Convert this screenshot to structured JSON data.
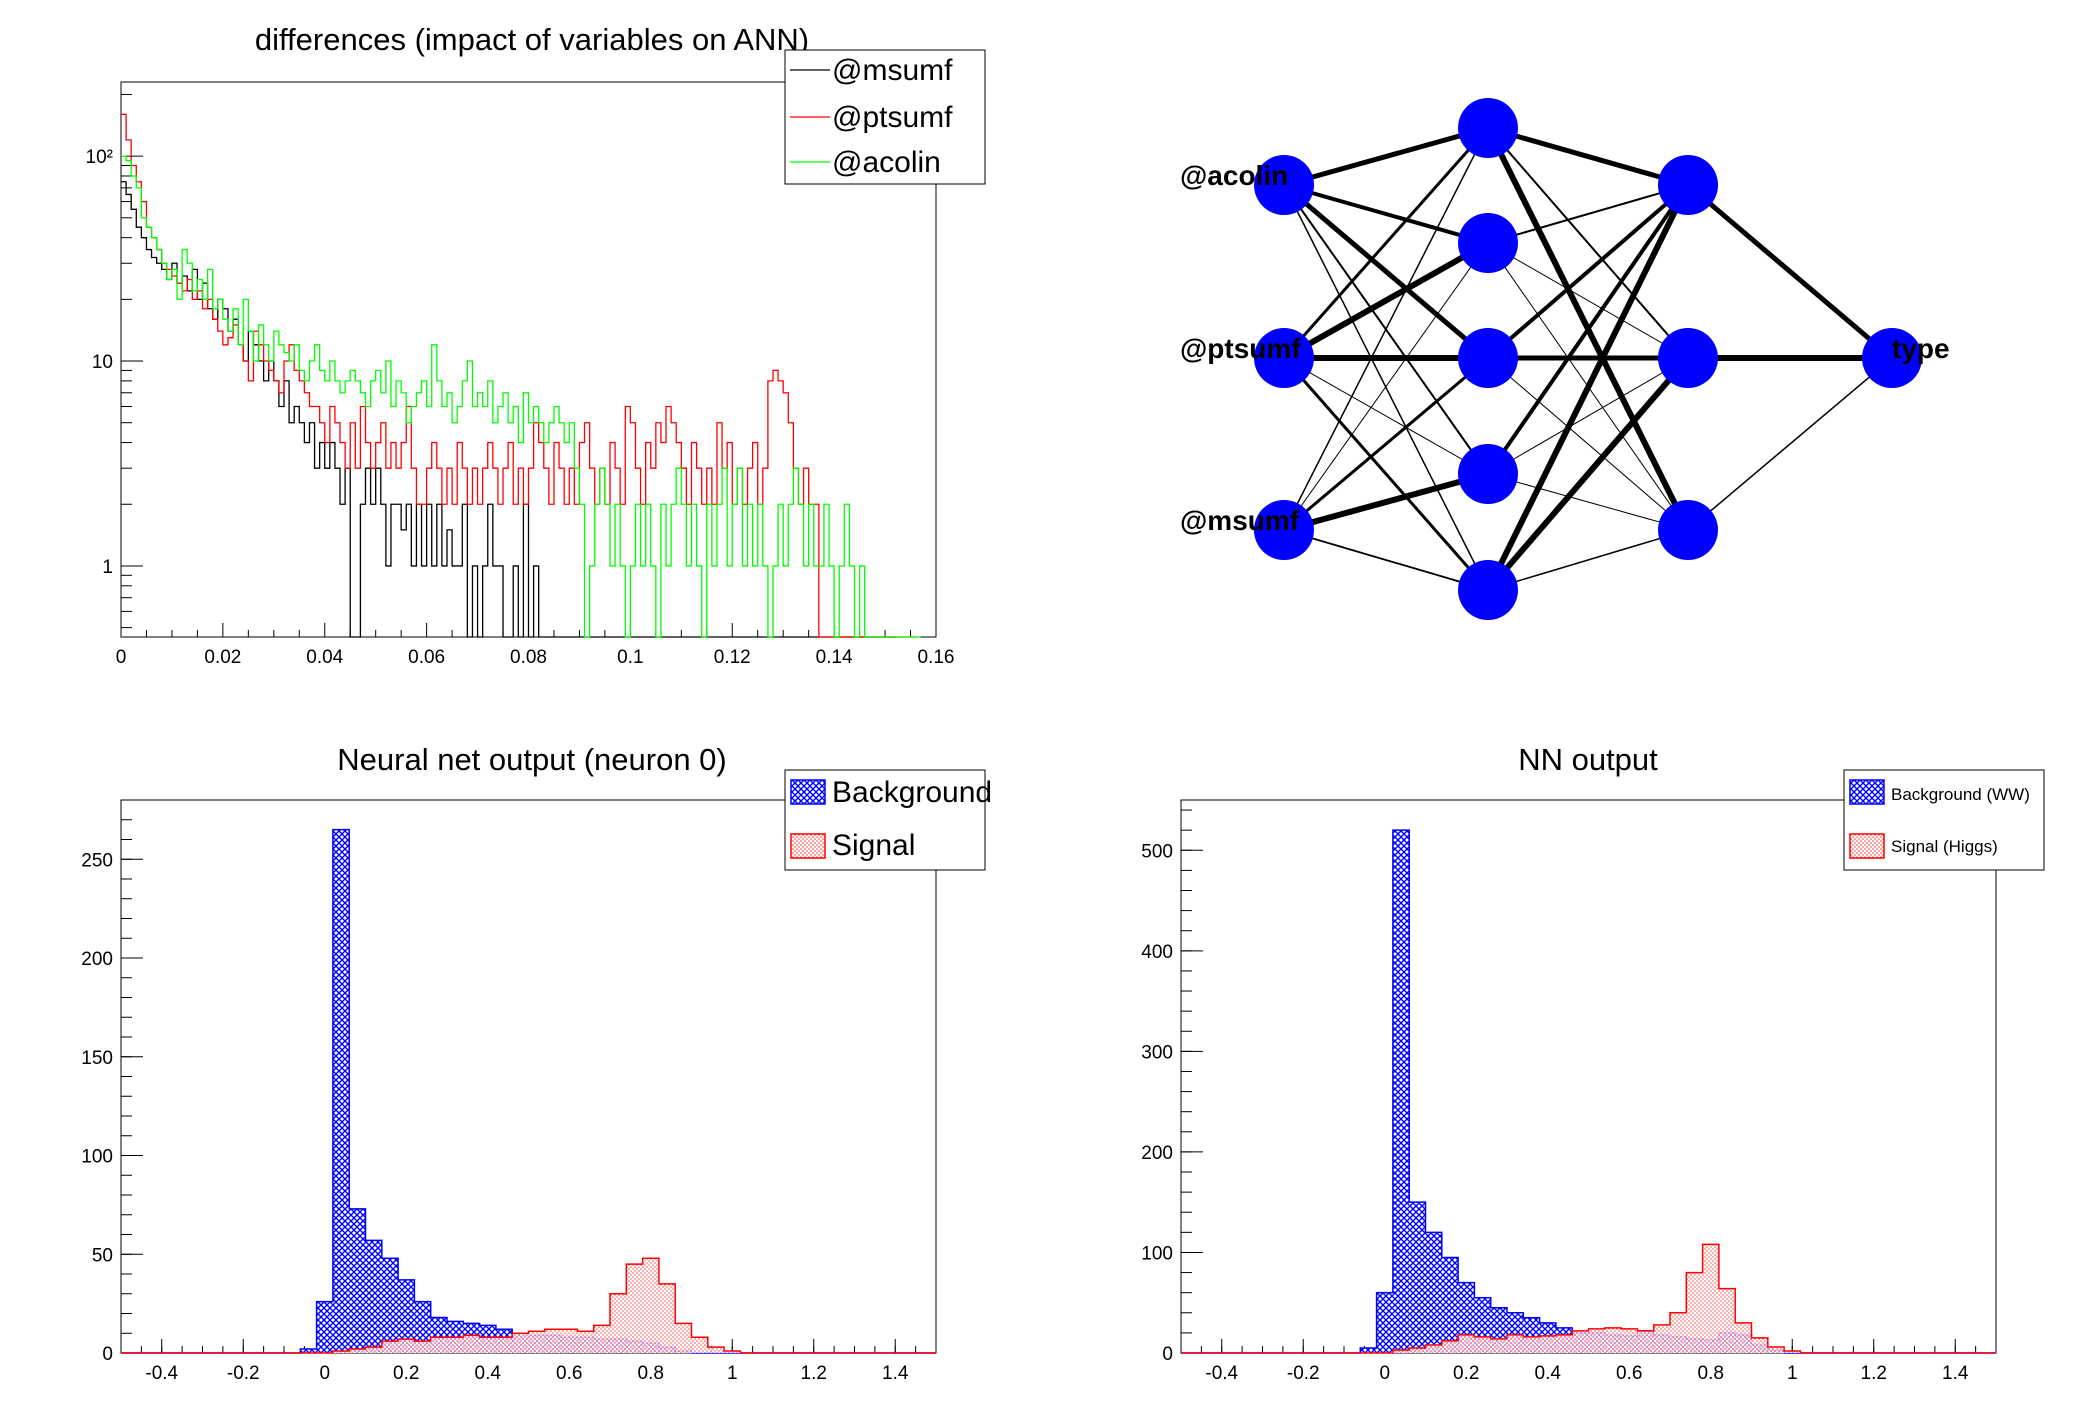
{
  "chart_data": [
    {
      "id": "diff",
      "type": "line",
      "title": "differences (impact of variables on ANN)",
      "yscale": "log",
      "xlim": [
        0,
        0.16
      ],
      "ylim": [
        0.45,
        230
      ],
      "xticks": [
        "0",
        "0.02",
        "0.04",
        "0.06",
        "0.08",
        "0.1",
        "0.12",
        "0.14",
        "0.16"
      ],
      "yticks": [
        {
          "v": 1,
          "label": "1"
        },
        {
          "v": 10,
          "label": "10"
        },
        {
          "v": 100,
          "label": "10²"
        }
      ],
      "legend_position": "top-right",
      "series": [
        {
          "name": "@msumf",
          "color": "#000000",
          "bin_width": 0.001,
          "values": [
            75,
            65,
            55,
            45,
            40,
            35,
            32,
            30,
            28,
            25,
            30,
            24,
            26,
            22,
            28,
            20,
            24,
            18,
            16,
            20,
            18,
            14,
            16,
            12,
            10,
            14,
            12,
            10,
            8,
            10,
            8,
            6,
            8,
            5,
            6,
            5,
            4,
            5,
            3,
            4,
            3,
            4,
            3,
            2,
            3,
            0.3,
            0.3,
            2,
            3,
            2,
            3,
            2,
            1,
            2,
            2,
            1.5,
            2,
            1,
            2,
            1,
            2,
            1,
            2,
            1,
            1.5,
            1,
            1,
            2,
            0.3,
            1,
            0.3,
            1,
            2,
            1,
            1,
            0.3,
            0.3,
            1,
            0.3,
            2,
            0.3,
            1,
            0.3,
            0.3,
            0.3,
            0.3,
            0.3,
            0.3,
            0.3,
            0.3,
            0.3,
            0.3,
            0.3,
            0.3,
            0.3,
            0.3,
            0.3,
            0.3,
            0.3,
            0.3,
            0.3,
            0.3,
            0.3,
            0.3,
            0.3,
            0.3,
            0.3,
            0.3,
            0.3,
            0.3,
            0.3,
            0.3,
            0.3,
            0.3,
            0.3,
            0.3,
            0.3,
            0.3,
            0.3,
            0.3,
            0.3,
            0.3,
            0.3,
            0.3,
            0.3,
            0.3,
            0.3,
            0.3,
            0.3,
            0.3,
            0.3,
            0.3,
            0.3,
            0.3,
            0.3,
            0.3,
            0.3,
            0.3,
            0.3,
            0.3,
            0.3,
            0.3,
            0.3,
            0.3,
            0.3,
            0.3,
            0.3,
            0.3,
            0.3,
            0.3,
            0.3,
            0.3
          ]
        },
        {
          "name": "@ptsumf",
          "color": "#ff0000",
          "bin_width": 0.001,
          "values": [
            160,
            120,
            90,
            75,
            60,
            45,
            40,
            35,
            30,
            28,
            26,
            24,
            22,
            25,
            20,
            22,
            18,
            20,
            16,
            14,
            12,
            13,
            15,
            12,
            10,
            8,
            14,
            12,
            10,
            9,
            8,
            7,
            10,
            12,
            9,
            8,
            7,
            6,
            6,
            5,
            4,
            6,
            5,
            4,
            3,
            5,
            3,
            6,
            4,
            3,
            4,
            5,
            3,
            4,
            3,
            4,
            6,
            3,
            2,
            2,
            3,
            4,
            3,
            2,
            3,
            2,
            4,
            3,
            2,
            3,
            2,
            3,
            4,
            3,
            2,
            3,
            4,
            2,
            3,
            2,
            3,
            5,
            4,
            3,
            2,
            4,
            3,
            2,
            3,
            2,
            4,
            5,
            3,
            2,
            3,
            2,
            4,
            3,
            2,
            6,
            5,
            3,
            2,
            4,
            3,
            5,
            4,
            6,
            5,
            4,
            3,
            2,
            4,
            3,
            2,
            3,
            2,
            5,
            3,
            4,
            2,
            3,
            2,
            3,
            4,
            2,
            3,
            8,
            9,
            8,
            7,
            5,
            3,
            2,
            3,
            2,
            2,
            0.3,
            0.3,
            0.3,
            0.3,
            0.3,
            0.3,
            0.3,
            0.3,
            0.3,
            0.3,
            0.3,
            0.3,
            0.3,
            0.3,
            0.3,
            0.3,
            0.3,
            0.3,
            0.3
          ]
        },
        {
          "name": "@acolin",
          "color": "#00ff00",
          "bin_width": 0.001,
          "values": [
            100,
            95,
            80,
            70,
            50,
            45,
            40,
            35,
            30,
            25,
            28,
            20,
            35,
            30,
            22,
            25,
            20,
            28,
            18,
            20,
            16,
            14,
            18,
            12,
            20,
            14,
            10,
            15,
            12,
            10,
            14,
            12,
            11,
            10,
            12,
            9,
            8,
            10,
            12,
            9,
            8,
            10,
            8,
            7,
            8,
            9,
            8,
            7,
            6,
            8,
            9,
            7,
            10,
            6,
            8,
            7,
            5,
            6,
            7,
            8,
            6,
            12,
            8,
            6,
            7,
            5,
            6,
            8,
            10,
            6,
            7,
            6,
            8,
            5,
            6,
            7,
            5,
            6,
            4,
            7,
            5,
            6,
            5,
            4,
            5,
            6,
            5,
            4,
            5,
            3,
            2,
            0.3,
            1,
            2,
            3,
            2,
            1,
            2,
            1,
            0.3,
            1,
            2,
            1,
            2,
            1,
            0.3,
            2,
            1,
            2,
            3,
            2,
            1,
            2,
            1,
            0.3,
            2,
            1,
            2,
            3,
            1,
            2,
            3,
            1,
            2,
            1,
            2,
            1,
            0.3,
            1,
            2,
            1,
            2,
            3,
            2,
            1,
            2,
            1,
            1,
            2,
            1,
            0.3,
            1,
            2,
            1,
            0.3,
            1,
            0.3,
            0.3,
            0.3,
            0.3,
            0.3,
            0.3,
            0.3,
            0.3,
            0.3,
            0.3,
            0.3
          ]
        }
      ]
    },
    {
      "id": "nn0",
      "type": "bar",
      "title": "Neural net output (neuron 0)",
      "xlim": [
        -0.5,
        1.5
      ],
      "ylim": [
        0,
        280
      ],
      "xticks": [
        "-0.4",
        "-0.2",
        "0",
        "0.2",
        "0.4",
        "0.6",
        "0.8",
        "1",
        "1.2",
        "1.4"
      ],
      "yticks": [
        {
          "v": 0,
          "label": "0"
        },
        {
          "v": 50,
          "label": "50"
        },
        {
          "v": 100,
          "label": "100"
        },
        {
          "v": 150,
          "label": "150"
        },
        {
          "v": 200,
          "label": "200"
        },
        {
          "v": 250,
          "label": "250"
        }
      ],
      "legend_position": "top-right",
      "bin_edges_start": -0.1,
      "bin_width": 0.04,
      "series": [
        {
          "name": "Background",
          "color": "#0000ff",
          "fill": "crosshatch",
          "values": [
            0,
            2,
            26,
            265,
            73,
            57,
            48,
            37,
            26,
            18,
            16,
            15,
            14,
            12,
            10,
            9,
            9,
            8,
            8,
            7,
            7,
            6,
            5,
            3,
            1,
            0,
            0,
            0,
            0,
            0
          ]
        },
        {
          "name": "Signal",
          "color": "#ff0000",
          "fill": "dots",
          "values": [
            0,
            0,
            0,
            1,
            2,
            3,
            6,
            7,
            6,
            8,
            8,
            9,
            8,
            8,
            10,
            11,
            12,
            12,
            11,
            14,
            30,
            45,
            48,
            35,
            15,
            8,
            3,
            1,
            0,
            0
          ]
        }
      ]
    },
    {
      "id": "nnout",
      "type": "bar",
      "title": "NN output",
      "xlim": [
        -0.5,
        1.5
      ],
      "ylim": [
        0,
        550
      ],
      "xticks": [
        "-0.4",
        "-0.2",
        "0",
        "0.2",
        "0.4",
        "0.6",
        "0.8",
        "1",
        "1.2",
        "1.4"
      ],
      "yticks": [
        {
          "v": 0,
          "label": "0"
        },
        {
          "v": 100,
          "label": "100"
        },
        {
          "v": 200,
          "label": "200"
        },
        {
          "v": 300,
          "label": "300"
        },
        {
          "v": 400,
          "label": "400"
        },
        {
          "v": 500,
          "label": "500"
        }
      ],
      "legend_position": "top-right",
      "bin_edges_start": -0.1,
      "bin_width": 0.04,
      "series": [
        {
          "name": "Background (WW)",
          "color": "#0000ff",
          "fill": "crosshatch",
          "values": [
            0,
            5,
            60,
            520,
            150,
            120,
            95,
            70,
            55,
            45,
            40,
            35,
            30,
            25,
            20,
            20,
            18,
            17,
            22,
            18,
            16,
            14,
            13,
            20,
            18,
            8,
            3,
            0,
            0,
            0
          ]
        },
        {
          "name": "Signal (Higgs)",
          "color": "#ff0000",
          "fill": "dots",
          "values": [
            0,
            0,
            0,
            3,
            5,
            8,
            12,
            18,
            16,
            14,
            18,
            16,
            17,
            18,
            22,
            24,
            25,
            24,
            22,
            28,
            40,
            80,
            108,
            64,
            30,
            15,
            6,
            2,
            0,
            0
          ]
        }
      ]
    }
  ],
  "network": {
    "input_labels": [
      "@acolin",
      "@ptsumf",
      "@msumf"
    ],
    "output_label": "type",
    "node_color": "#0000ff"
  }
}
